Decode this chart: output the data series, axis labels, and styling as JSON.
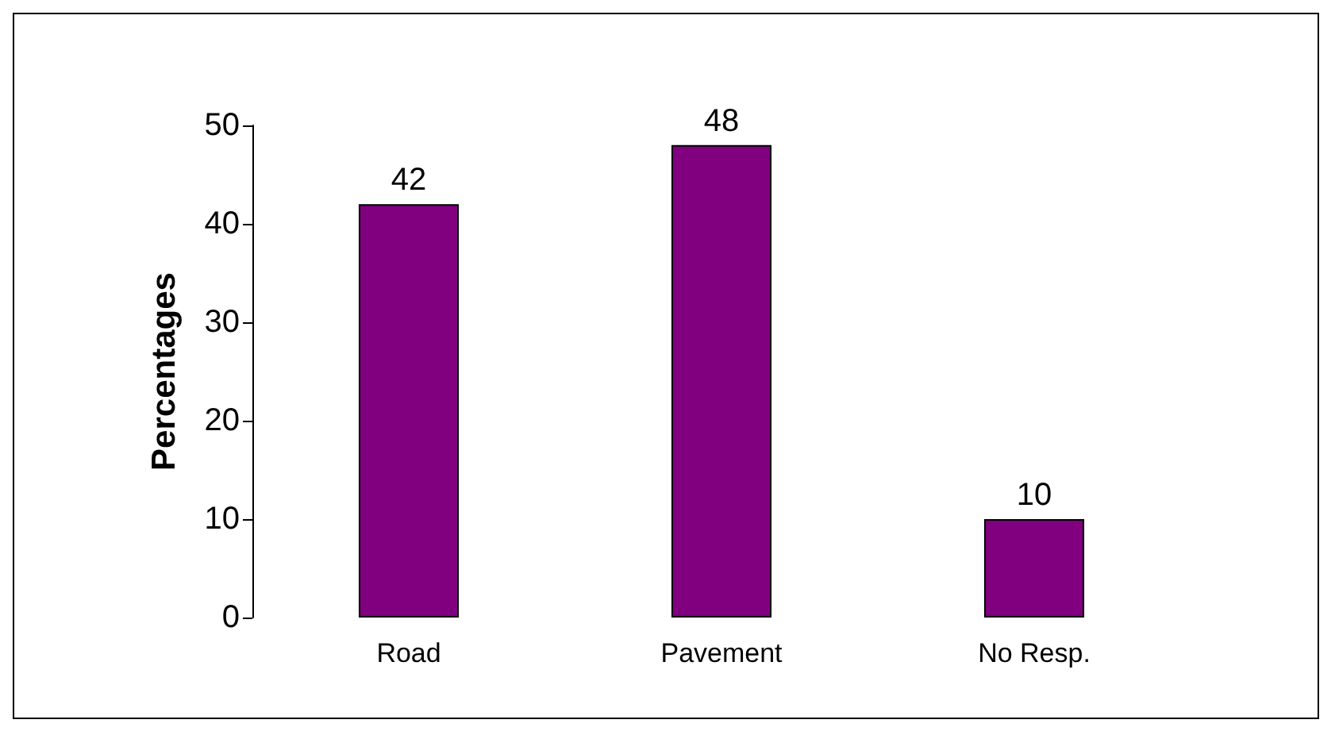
{
  "chart_data": {
    "type": "bar",
    "ylabel": "Percentages",
    "categories": [
      "Road",
      "Pavement",
      "No Resp."
    ],
    "values": [
      42,
      48,
      10
    ],
    "color": "#800080",
    "ylim": [
      0,
      50
    ],
    "yticks": [
      0,
      10,
      20,
      30,
      40,
      50
    ],
    "grid": false,
    "data_labels": true
  }
}
